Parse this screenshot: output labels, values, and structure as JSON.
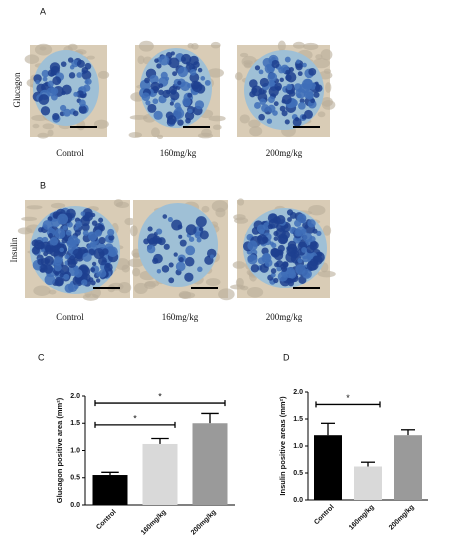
{
  "images": [
    {
      "label": "A",
      "row_label": "Glucagon",
      "captions": [
        "Control",
        "160mg/kg",
        "200mg/kg"
      ]
    },
    {
      "label": "B",
      "row_label": "Insulin",
      "captions": [
        "Control",
        "160mg/kg",
        "200mg/kg"
      ]
    }
  ],
  "chart_data": [
    {
      "type": "bar",
      "panel_label": "C",
      "ylabel": "Glucagon positive area (mm²)",
      "categories": [
        "Control",
        "160mg/kg",
        "200mg/kg"
      ],
      "values": [
        0.55,
        1.12,
        1.5
      ],
      "errors": [
        0.05,
        0.1,
        0.18
      ],
      "colors": [
        "#000000",
        "#d9d9d9",
        "#9a9a9a"
      ],
      "ylim": [
        0,
        2.0
      ],
      "yticks": [
        {
          "value": 0,
          "label": "0.0"
        },
        0.5,
        {
          "value": 1,
          "label": "1.0"
        },
        1.5,
        {
          "value": 2,
          "label": "2.0"
        }
      ],
      "significance": [
        {
          "label": "*",
          "from": "Control",
          "to": "160mg/kg",
          "y": 1.47
        },
        {
          "label": "*",
          "from": "Control",
          "to": "200mg/kg",
          "y": 1.87
        }
      ]
    },
    {
      "type": "bar",
      "panel_label": "D",
      "ylabel": "Insulin positive areas (mm²)",
      "categories": [
        "Control",
        "160mg/kg",
        "200mg/kg"
      ],
      "values": [
        1.2,
        0.62,
        1.2
      ],
      "errors": [
        0.22,
        0.08,
        0.1
      ],
      "colors": [
        "#000000",
        "#d9d9d9",
        "#9a9a9a"
      ],
      "ylim": [
        0,
        2.0
      ],
      "yticks": [
        {
          "value": 0,
          "label": "0.0"
        },
        0.5,
        {
          "value": 1,
          "label": "1.0"
        },
        1.5,
        {
          "value": 2,
          "label": "2.0"
        }
      ],
      "significance": [
        {
          "label": "*",
          "from": "Control",
          "to": "160mg/kg",
          "y": 1.77
        }
      ]
    }
  ]
}
